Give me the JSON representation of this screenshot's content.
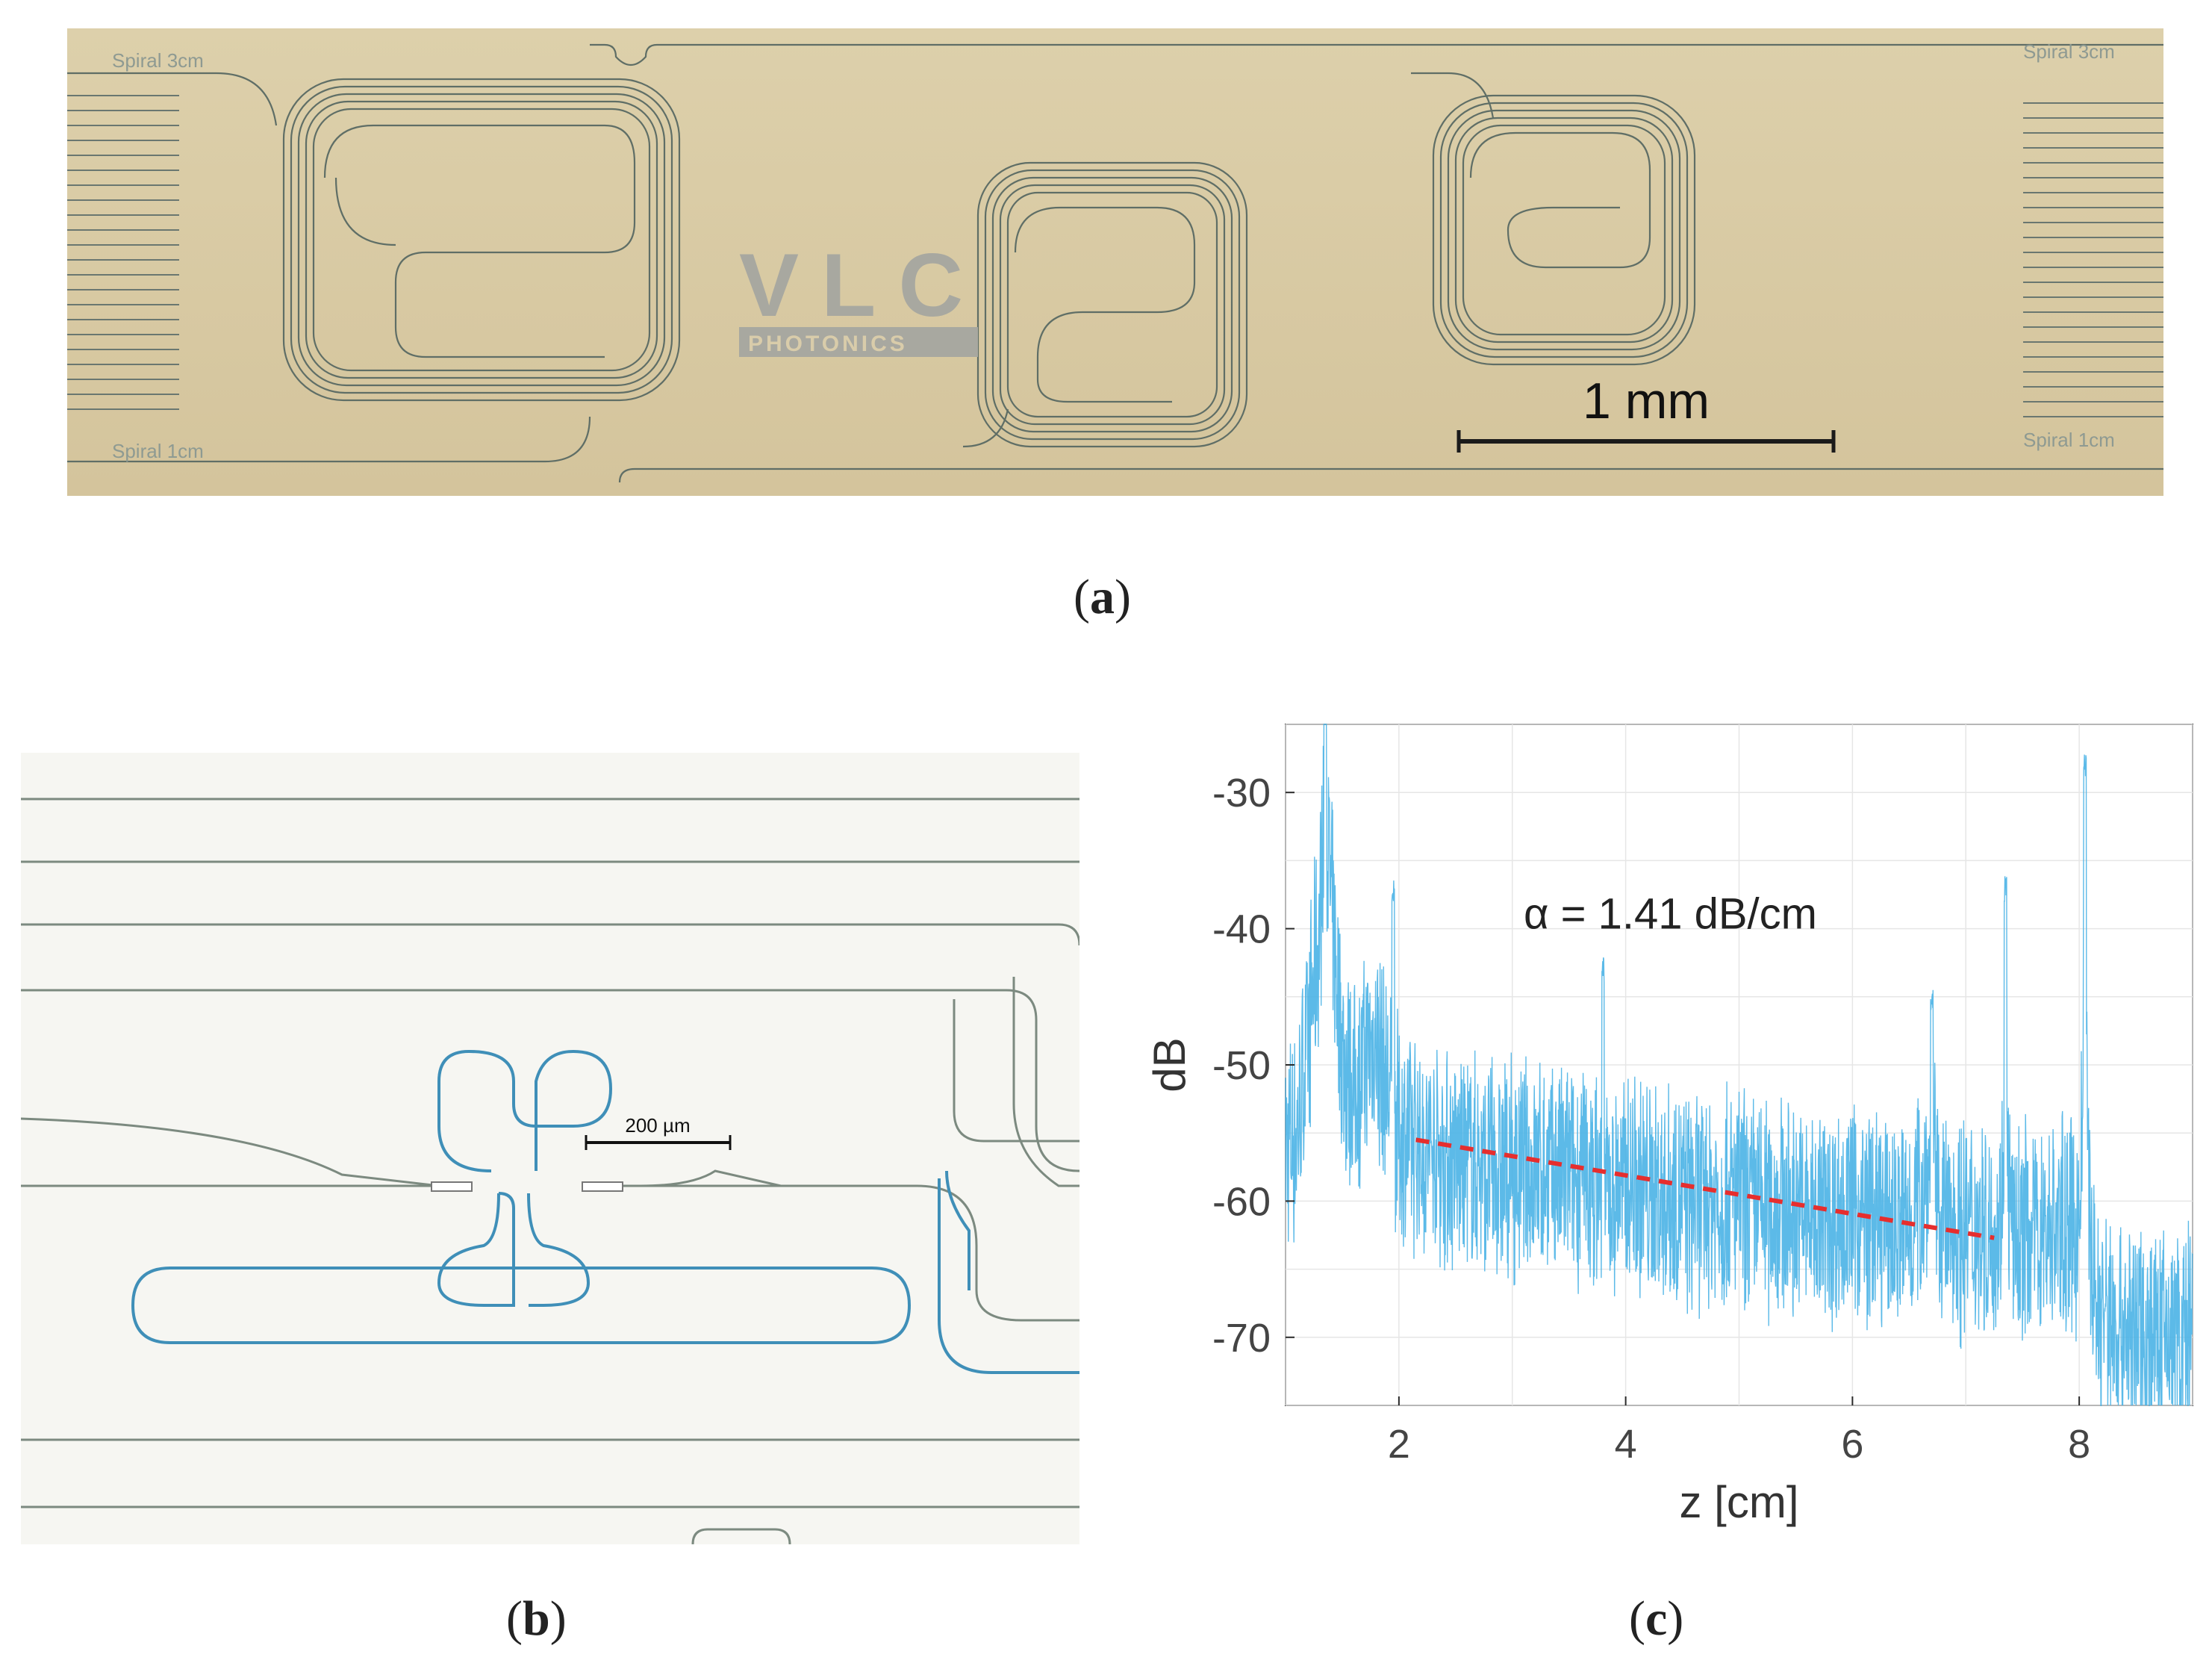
{
  "figure": {
    "panel_a": {
      "caption_open": "(",
      "caption_letter": "a",
      "caption_close": ")",
      "scale_bar_label": "1 mm",
      "label_top_left": "Spiral 3cm",
      "label_top_right": "Spiral 3cm",
      "label_bottom_left": "Spiral 1cm",
      "label_bottom_right": "Spiral 1cm",
      "logo_text_top": "VLC",
      "logo_text_bottom": "PHOTONICS",
      "background_color": "#d8c9a2",
      "waveguide_color": "#5f6e66"
    },
    "panel_b": {
      "caption_open": "(",
      "caption_letter": "b",
      "caption_close": ")",
      "scale_bar_label": "200 µm",
      "background_color": "#f6f6f2",
      "waveguide_color": "#3f8fb8"
    },
    "panel_c": {
      "caption_open": "(",
      "caption_letter": "c",
      "caption_close": ")",
      "annotation": "α = 1.41 dB/cm"
    }
  },
  "chart_data": {
    "type": "line",
    "xlabel": "z [cm]",
    "ylabel": "dB",
    "xlim": [
      1,
      9
    ],
    "ylim": [
      -75,
      -25
    ],
    "xticks": [
      2,
      4,
      6,
      8
    ],
    "yticks": [
      -30,
      -40,
      -50,
      -60,
      -70
    ],
    "grid": true,
    "series": [
      {
        "color": "#4ab3e6",
        "style": "noisy-trace",
        "x": [
          1.0,
          1.1,
          1.2,
          1.3,
          1.35,
          1.4,
          1.5,
          1.6,
          1.8,
          1.9,
          2.0,
          2.2,
          2.5,
          3.0,
          3.5,
          3.8,
          4.0,
          4.5,
          5.0,
          5.5,
          6.0,
          6.5,
          6.7,
          6.8,
          7.0,
          7.3,
          7.35,
          7.4,
          7.6,
          8.0,
          8.05,
          8.1,
          8.15,
          8.3,
          8.6,
          9.0
        ],
        "y": [
          -56,
          -55,
          -48,
          -40,
          -30,
          -38,
          -49,
          -52,
          -48,
          -52,
          -55,
          -56,
          -57,
          -58,
          -58,
          -59,
          -59,
          -60,
          -60,
          -61,
          -61,
          -62,
          -57,
          -62,
          -62,
          -62,
          -52,
          -63,
          -62,
          -62,
          -45,
          -63,
          -68,
          -69,
          -70,
          -70
        ],
        "peaks": [
          {
            "x": 1.35,
            "y": -25
          },
          {
            "x": 1.95,
            "y": -38
          },
          {
            "x": 3.8,
            "y": -44
          },
          {
            "x": 6.7,
            "y": -46
          },
          {
            "x": 7.35,
            "y": -38
          },
          {
            "x": 8.05,
            "y": -29
          }
        ]
      },
      {
        "color": "#e62e2e",
        "style": "dashed-fit",
        "x": [
          2.15,
          7.25
        ],
        "y": [
          -55.5,
          -62.7
        ]
      }
    ]
  }
}
